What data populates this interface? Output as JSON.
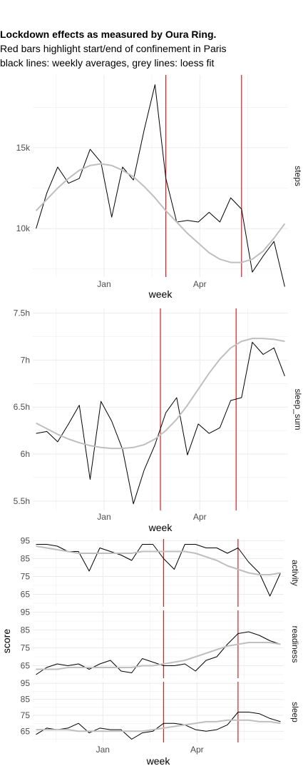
{
  "header": {
    "title": "Lockdown effects as measured by Oura Ring.",
    "subtitle_line1": "Red bars highlight start/end of confinement in Paris",
    "subtitle_line2": "black lines: weekly averages, grey lines: loess fit"
  },
  "colors": {
    "raw": "#000000",
    "loess": "#bfbfbf",
    "event": "#e31a1c",
    "grid": "#ebebeb"
  },
  "chart_data": [
    {
      "type": "line",
      "facet": "steps",
      "xlabel": "week",
      "ylabel": "",
      "x_unit": "weeks since 2019-11-18",
      "xlim": [
        -0.3,
        23.3
      ],
      "x_ticks": [
        {
          "x": 6.29,
          "label": "Jan"
        },
        {
          "x": 15.14,
          "label": "Apr"
        }
      ],
      "ylim": [
        7000,
        19500
      ],
      "y_ticks": [
        {
          "y": 10000,
          "label": "10k"
        },
        {
          "y": 15000,
          "label": "15k"
        }
      ],
      "vlines": [
        12,
        19.0
      ],
      "series": [
        {
          "name": "weekly average",
          "x": [
            0,
            1,
            2,
            3,
            4,
            5,
            6,
            7,
            8,
            9,
            10,
            11,
            12,
            13,
            14,
            15,
            16,
            17,
            18,
            19,
            20,
            21,
            22,
            23
          ],
          "values": [
            10000,
            12200,
            13800,
            12800,
            13100,
            14900,
            14100,
            10700,
            13800,
            13000,
            16100,
            18900,
            13100,
            10400,
            10500,
            10400,
            11000,
            10400,
            11900,
            11200,
            7300,
            8300,
            9200,
            6400
          ]
        },
        {
          "name": "loess fit",
          "x": [
            0,
            1,
            2,
            3,
            4,
            5,
            6,
            7,
            8,
            9,
            10,
            11,
            12,
            13,
            14,
            15,
            16,
            17,
            18,
            19,
            20,
            21,
            22,
            23
          ],
          "values": [
            11100,
            11800,
            12500,
            13100,
            13600,
            13900,
            14000,
            13900,
            13600,
            13200,
            12600,
            11900,
            11100,
            10400,
            9700,
            9100,
            8500,
            8100,
            7900,
            7900,
            8100,
            8600,
            9400,
            10300
          ]
        }
      ]
    },
    {
      "type": "line",
      "facet": "sleep_sum",
      "xlabel": "week",
      "ylabel": "",
      "x_unit": "weeks since 2019-11-18",
      "xlim": [
        -0.3,
        23.3
      ],
      "x_ticks": [
        {
          "x": 6.29,
          "label": "Jan"
        },
        {
          "x": 15.14,
          "label": "Apr"
        }
      ],
      "ylim": [
        5.4,
        7.55
      ],
      "y_ticks": [
        {
          "y": 5.5,
          "label": "5.5h"
        },
        {
          "y": 6,
          "label": "6h"
        },
        {
          "y": 6.5,
          "label": "6.5h"
        },
        {
          "y": 7,
          "label": "7h"
        },
        {
          "y": 7.5,
          "label": "7.5h"
        }
      ],
      "vlines": [
        11.5,
        18.5
      ],
      "series": [
        {
          "name": "weekly average",
          "x": [
            0,
            1,
            2,
            3,
            4,
            5,
            6,
            7,
            8,
            9,
            10,
            11,
            12,
            13,
            14,
            15,
            16,
            17,
            18,
            19,
            20,
            21,
            22,
            23
          ],
          "values": [
            6.22,
            6.24,
            6.13,
            6.32,
            6.52,
            5.73,
            6.56,
            6.35,
            6.05,
            5.47,
            5.83,
            6.1,
            6.44,
            6.6,
            5.99,
            6.32,
            6.22,
            6.28,
            6.57,
            6.6,
            7.19,
            7.06,
            7.13,
            6.83
          ]
        },
        {
          "name": "loess fit",
          "x": [
            0,
            1,
            2,
            3,
            4,
            5,
            6,
            7,
            8,
            9,
            10,
            11,
            12,
            13,
            14,
            15,
            16,
            17,
            18,
            19,
            20,
            21,
            22,
            23
          ],
          "values": [
            6.33,
            6.27,
            6.21,
            6.16,
            6.12,
            6.09,
            6.07,
            6.06,
            6.06,
            6.07,
            6.1,
            6.16,
            6.25,
            6.37,
            6.52,
            6.69,
            6.86,
            7.01,
            7.13,
            7.2,
            7.23,
            7.23,
            7.22,
            7.2
          ]
        }
      ]
    },
    {
      "type": "line",
      "facet": "activity",
      "xlabel": "week",
      "ylabel": "score",
      "x_unit": "weeks since 2019-11-18",
      "xlim": [
        -0.3,
        23.3
      ],
      "x_ticks": [
        {
          "x": 6.29,
          "label": "Jan"
        },
        {
          "x": 15.14,
          "label": "Apr"
        }
      ],
      "ylim": [
        58,
        96
      ],
      "y_ticks": [
        {
          "y": 65,
          "label": "65"
        },
        {
          "y": 75,
          "label": "75"
        },
        {
          "y": 85,
          "label": "85"
        },
        {
          "y": 95,
          "label": "95"
        }
      ],
      "vlines": [
        12,
        19.0
      ],
      "series": [
        {
          "name": "weekly average",
          "x": [
            0,
            1,
            2,
            3,
            4,
            5,
            6,
            7,
            8,
            9,
            10,
            11,
            12,
            13,
            14,
            15,
            16,
            17,
            18,
            19,
            20,
            21,
            22,
            23
          ],
          "values": [
            93,
            93,
            92,
            89,
            89,
            78,
            91,
            89,
            87,
            84,
            93,
            93,
            85,
            79,
            93,
            93,
            91,
            91,
            88,
            91,
            83,
            77,
            64,
            77
          ]
        },
        {
          "name": "loess fit",
          "x": [
            0,
            1,
            2,
            3,
            4,
            5,
            6,
            7,
            8,
            9,
            10,
            11,
            12,
            13,
            14,
            15,
            16,
            17,
            18,
            19,
            20,
            21,
            22,
            23
          ],
          "values": [
            92,
            91,
            90,
            89,
            88,
            88,
            88,
            88,
            88,
            88,
            89,
            89,
            89,
            89,
            89,
            88,
            86,
            84,
            81,
            79,
            77,
            76,
            76,
            77
          ]
        }
      ]
    },
    {
      "type": "line",
      "facet": "readiness",
      "xlabel": "week",
      "ylabel": "score",
      "x_unit": "weeks since 2019-11-18",
      "xlim": [
        -0.3,
        23.3
      ],
      "x_ticks": [
        {
          "x": 6.29,
          "label": "Jan"
        },
        {
          "x": 15.14,
          "label": "Apr"
        }
      ],
      "ylim": [
        58,
        96
      ],
      "y_ticks": [
        {
          "y": 65,
          "label": "65"
        },
        {
          "y": 75,
          "label": "75"
        },
        {
          "y": 85,
          "label": "85"
        },
        {
          "y": 95,
          "label": "95"
        }
      ],
      "vlines": [
        12,
        19.0
      ],
      "series": [
        {
          "name": "weekly average",
          "x": [
            0,
            1,
            2,
            3,
            4,
            5,
            6,
            7,
            8,
            9,
            10,
            11,
            12,
            13,
            14,
            15,
            16,
            17,
            18,
            19,
            20,
            21,
            22,
            23
          ],
          "values": [
            60,
            64,
            66,
            65,
            66,
            63,
            66,
            68,
            62,
            61,
            69,
            67,
            65,
            65,
            66,
            62,
            68,
            70,
            77,
            83,
            84,
            82,
            79,
            77
          ]
        },
        {
          "name": "loess fit",
          "x": [
            0,
            1,
            2,
            3,
            4,
            5,
            6,
            7,
            8,
            9,
            10,
            11,
            12,
            13,
            14,
            15,
            16,
            17,
            18,
            19,
            20,
            21,
            22,
            23
          ],
          "values": [
            63,
            63,
            63,
            64,
            64,
            64,
            64,
            64,
            64,
            64,
            65,
            65,
            66,
            67,
            68,
            70,
            72,
            74,
            76,
            77,
            78,
            78,
            78,
            77
          ]
        }
      ]
    },
    {
      "type": "line",
      "facet": "sleep",
      "xlabel": "week",
      "ylabel": "score",
      "x_unit": "weeks since 2019-11-18",
      "xlim": [
        -0.3,
        23.3
      ],
      "x_ticks": [
        {
          "x": 6.29,
          "label": "Jan"
        },
        {
          "x": 15.14,
          "label": "Apr"
        }
      ],
      "ylim": [
        58,
        96
      ],
      "y_ticks": [
        {
          "y": 65,
          "label": "65"
        },
        {
          "y": 75,
          "label": "75"
        },
        {
          "y": 85,
          "label": "85"
        },
        {
          "y": 95,
          "label": "95"
        }
      ],
      "vlines": [
        12,
        19.0
      ],
      "series": [
        {
          "name": "weekly average",
          "x": [
            0,
            1,
            2,
            3,
            4,
            5,
            6,
            7,
            8,
            9,
            10,
            11,
            12,
            13,
            14,
            15,
            16,
            17,
            18,
            19,
            20,
            21,
            22,
            23
          ],
          "values": [
            63,
            67,
            66,
            67,
            70,
            64,
            67,
            66,
            66,
            60,
            64,
            65,
            70,
            70,
            69,
            66,
            65,
            66,
            69,
            77,
            77,
            76,
            73,
            71
          ]
        },
        {
          "name": "loess fit",
          "x": [
            0,
            1,
            2,
            3,
            4,
            5,
            6,
            7,
            8,
            9,
            10,
            11,
            12,
            13,
            14,
            15,
            16,
            17,
            18,
            19,
            20,
            21,
            22,
            23
          ],
          "values": [
            66,
            66,
            66,
            66,
            65,
            65,
            65,
            65,
            65,
            65,
            65,
            66,
            67,
            68,
            69,
            70,
            71,
            71,
            72,
            72,
            72,
            71,
            71,
            70
          ]
        }
      ]
    }
  ]
}
